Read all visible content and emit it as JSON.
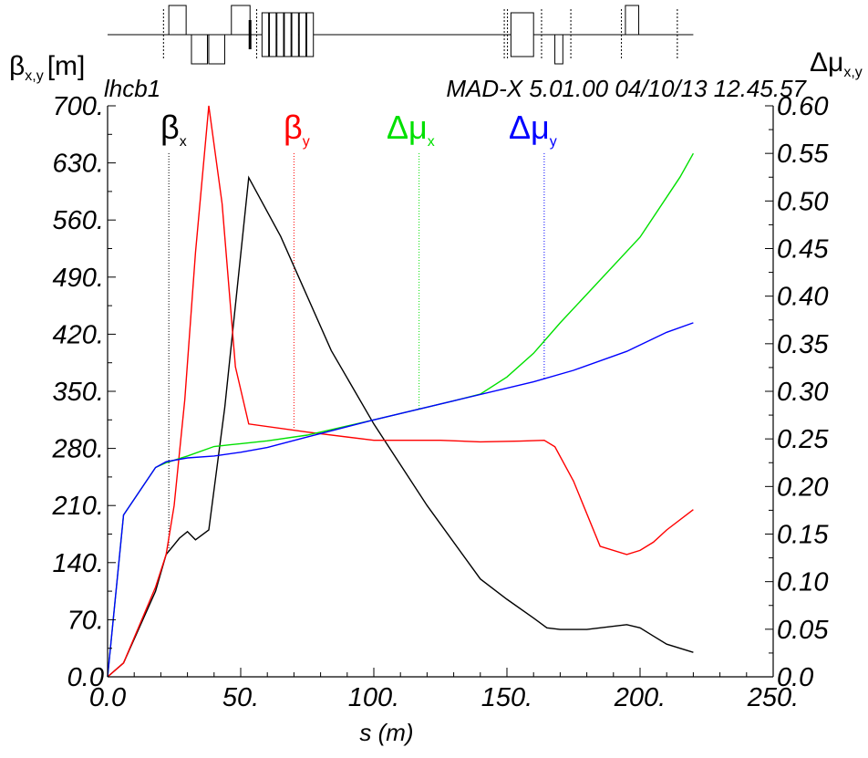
{
  "chart_data": {
    "type": "line",
    "header_left": "lhcb1",
    "header_right": "MAD-X 5.01.00  04/10/13 12.45.57",
    "xlabel": "s (m)",
    "ylabel_left": {
      "main": "β",
      "sub": "x,y",
      "unit": "[m]"
    },
    "ylabel_right": {
      "main": "Δμ",
      "sub": "x,y"
    },
    "xlim": [
      0,
      250
    ],
    "ylim_left": [
      0,
      700
    ],
    "ylim_right": [
      0,
      0.6
    ],
    "x_ticks": [
      "0.0",
      "50.",
      "100.",
      "150.",
      "200.",
      "250."
    ],
    "y_left_ticks": [
      "0.0",
      "70.",
      "140.",
      "210.",
      "280.",
      "350.",
      "420.",
      "490.",
      "560.",
      "630.",
      "700."
    ],
    "y_right_ticks": [
      "0.0",
      "0.05",
      "0.10",
      "0.15",
      "0.20",
      "0.25",
      "0.30",
      "0.35",
      "0.40",
      "0.45",
      "0.50",
      "0.55",
      "0.60"
    ],
    "grid": false,
    "series": [
      {
        "name": "βx",
        "main": "β",
        "sub": "x",
        "axis": "left",
        "color": "#000000",
        "legend_x": 23,
        "x": [
          0,
          6,
          18,
          22,
          27,
          30,
          33,
          38,
          44,
          53,
          65,
          84,
          100,
          120,
          140,
          150,
          160,
          165,
          170,
          180,
          190,
          195,
          200,
          205,
          210,
          220
        ],
        "y": [
          0,
          17,
          105,
          150,
          170,
          178,
          168,
          180,
          330,
          612,
          540,
          400,
          310,
          210,
          120,
          95,
          72,
          60,
          58,
          58,
          62,
          64,
          60,
          50,
          40,
          30
        ]
      },
      {
        "name": "βy",
        "main": "β",
        "sub": "y",
        "axis": "left",
        "color": "#ff0000",
        "legend_x": 70,
        "x": [
          0,
          6,
          18,
          22,
          25,
          29,
          33,
          38,
          43,
          48,
          53,
          75,
          100,
          125,
          140,
          155,
          164,
          168,
          175,
          185,
          195,
          200,
          205,
          210,
          220
        ],
        "y": [
          0,
          17,
          110,
          150,
          210,
          340,
          520,
          700,
          580,
          380,
          310,
          300,
          290,
          290,
          288,
          289,
          290,
          282,
          240,
          160,
          150,
          155,
          165,
          180,
          205
        ]
      },
      {
        "name": "Δμx",
        "main": "Δμ",
        "sub": "x",
        "axis": "right",
        "color": "#00e000",
        "legend_x": 117,
        "x": [
          0,
          6,
          18,
          22,
          30,
          40,
          50,
          60,
          75,
          100,
          130,
          140,
          150,
          160,
          170,
          180,
          200,
          215,
          220
        ],
        "y": [
          0,
          0.17,
          0.22,
          0.225,
          0.232,
          0.242,
          0.245,
          0.248,
          0.254,
          0.27,
          0.29,
          0.297,
          0.315,
          0.34,
          0.372,
          0.402,
          0.462,
          0.525,
          0.55
        ]
      },
      {
        "name": "Δμy",
        "main": "Δμ",
        "sub": "y",
        "axis": "right",
        "color": "#0000ff",
        "legend_x": 164,
        "x": [
          0,
          6,
          18,
          22,
          30,
          40,
          50,
          60,
          75,
          100,
          130,
          160,
          175,
          195,
          210,
          220
        ],
        "y": [
          0,
          0.17,
          0.22,
          0.226,
          0.23,
          0.232,
          0.236,
          0.241,
          0.252,
          0.27,
          0.29,
          0.31,
          0.322,
          0.342,
          0.362,
          0.372
        ]
      }
    ],
    "lattice": {
      "s_start": 0,
      "s_end": 220,
      "elements": [
        {
          "kind": "marker",
          "s": 21
        },
        {
          "kind": "box",
          "s1": 23,
          "s2": 29.5,
          "side": "up"
        },
        {
          "kind": "box",
          "s1": 31.5,
          "s2": 37.5,
          "side": "down"
        },
        {
          "kind": "box",
          "s1": 38,
          "s2": 44,
          "side": "down"
        },
        {
          "kind": "box",
          "s1": 46.5,
          "s2": 53.5,
          "side": "up"
        },
        {
          "kind": "thick",
          "s": 53.5
        },
        {
          "kind": "marker",
          "s": 56
        },
        {
          "kind": "box",
          "s1": 58,
          "s2": 60.5,
          "side": "both"
        },
        {
          "kind": "box",
          "s1": 60.8,
          "s2": 63.3,
          "side": "both"
        },
        {
          "kind": "box",
          "s1": 63.6,
          "s2": 66.1,
          "side": "both"
        },
        {
          "kind": "box",
          "s1": 66.4,
          "s2": 68.9,
          "side": "both"
        },
        {
          "kind": "box",
          "s1": 69.2,
          "s2": 71.7,
          "side": "both"
        },
        {
          "kind": "box",
          "s1": 72,
          "s2": 74.5,
          "side": "both"
        },
        {
          "kind": "box",
          "s1": 74.8,
          "s2": 77.3,
          "side": "both"
        },
        {
          "kind": "marker",
          "s": 149
        },
        {
          "kind": "marker",
          "s": 150.2
        },
        {
          "kind": "box",
          "s1": 151.5,
          "s2": 160,
          "side": "both"
        },
        {
          "kind": "box",
          "s1": 168,
          "s2": 171,
          "side": "down"
        },
        {
          "kind": "marker",
          "s": 163
        },
        {
          "kind": "marker",
          "s": 174
        },
        {
          "kind": "marker",
          "s": 193
        },
        {
          "kind": "box",
          "s1": 194.5,
          "s2": 199.5,
          "side": "up"
        },
        {
          "kind": "marker",
          "s": 214
        }
      ]
    }
  }
}
